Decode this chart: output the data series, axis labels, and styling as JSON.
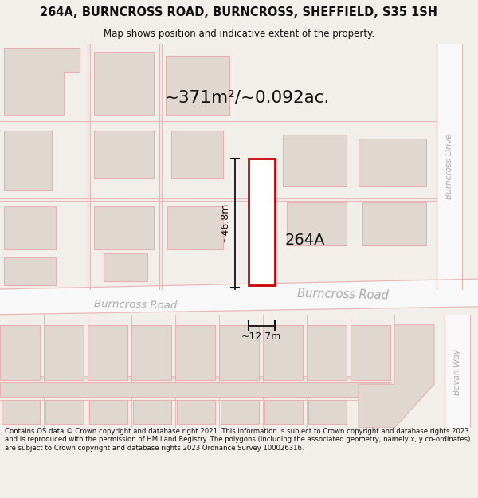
{
  "title_line1": "264A, BURNCROSS ROAD, BURNCROSS, SHEFFIELD, S35 1SH",
  "title_line2": "Map shows position and indicative extent of the property.",
  "area_label": "~371m²/~0.092ac.",
  "property_label": "264A",
  "dim_height": "~46.8m",
  "dim_width": "~12.7m",
  "road_label_left": "Burncross Road",
  "road_label_right": "Burncross Road",
  "road_label_drive": "Burncross Drive",
  "road_label_bevan": "Bevan Way",
  "footer_text": "Contains OS data © Crown copyright and database right 2021. This information is subject to Crown copyright and database rights 2023 and is reproduced with the permission of HM Land Registry. The polygons (including the associated geometry, namely x, y co-ordinates) are subject to Crown copyright and database rights 2023 Ordnance Survey 100026316.",
  "map_bg": "#ffffff",
  "building_fill": "#e0d8d0",
  "building_ec": "#e8b0b0",
  "property_fill": "#ffffff",
  "property_ec": "#cc0000",
  "road_line_color": "#e8b8b8",
  "text_dark": "#111111",
  "text_road": "#aaaaaa",
  "header_bg": "#f2eeea",
  "footer_bg": "#ffffff"
}
